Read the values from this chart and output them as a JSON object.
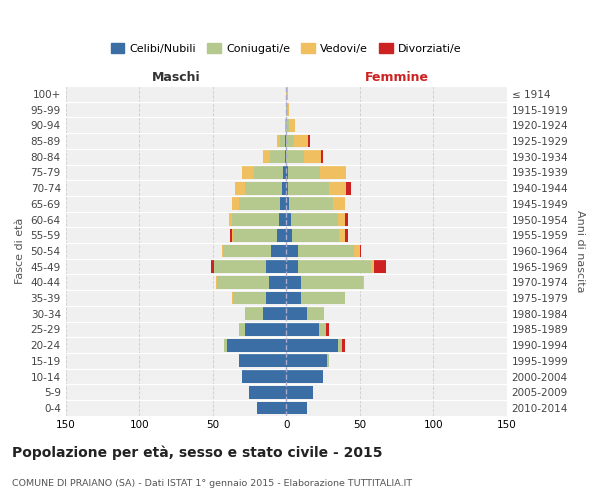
{
  "age_groups": [
    "0-4",
    "5-9",
    "10-14",
    "15-19",
    "20-24",
    "25-29",
    "30-34",
    "35-39",
    "40-44",
    "45-49",
    "50-54",
    "55-59",
    "60-64",
    "65-69",
    "70-74",
    "75-79",
    "80-84",
    "85-89",
    "90-94",
    "95-99",
    "100+"
  ],
  "birth_years": [
    "2010-2014",
    "2005-2009",
    "2000-2004",
    "1995-1999",
    "1990-1994",
    "1985-1989",
    "1980-1984",
    "1975-1979",
    "1970-1974",
    "1965-1969",
    "1960-1964",
    "1955-1959",
    "1950-1954",
    "1945-1949",
    "1940-1944",
    "1935-1939",
    "1930-1934",
    "1925-1929",
    "1920-1924",
    "1915-1919",
    "≤ 1914"
  ],
  "colors": {
    "celibi": "#3a6ea5",
    "coniugati": "#b5c98e",
    "vedovi": "#f0c060",
    "divorziati": "#cc2222"
  },
  "male": {
    "celibi": [
      20,
      25,
      30,
      32,
      40,
      28,
      16,
      14,
      12,
      14,
      10,
      6,
      5,
      4,
      3,
      2,
      1,
      1,
      0,
      0,
      0
    ],
    "coniugati": [
      0,
      0,
      0,
      0,
      2,
      4,
      12,
      22,
      35,
      35,
      33,
      30,
      32,
      28,
      25,
      20,
      10,
      3,
      1,
      0,
      0
    ],
    "vedovi": [
      0,
      0,
      0,
      0,
      0,
      0,
      0,
      1,
      1,
      0,
      1,
      1,
      2,
      5,
      7,
      8,
      5,
      2,
      0,
      0,
      0
    ],
    "divorziati": [
      0,
      0,
      0,
      0,
      0,
      0,
      0,
      0,
      0,
      2,
      0,
      1,
      0,
      0,
      0,
      0,
      0,
      0,
      0,
      0,
      0
    ]
  },
  "female": {
    "celibi": [
      14,
      18,
      25,
      28,
      35,
      22,
      14,
      10,
      10,
      8,
      8,
      4,
      3,
      2,
      1,
      1,
      0,
      0,
      0,
      0,
      0
    ],
    "coniugati": [
      0,
      0,
      0,
      1,
      3,
      5,
      12,
      30,
      42,
      50,
      38,
      32,
      32,
      30,
      28,
      22,
      12,
      5,
      2,
      1,
      0
    ],
    "vedovi": [
      0,
      0,
      0,
      0,
      0,
      0,
      0,
      0,
      1,
      2,
      4,
      4,
      5,
      8,
      12,
      18,
      12,
      10,
      4,
      1,
      1
    ],
    "divorziati": [
      0,
      0,
      0,
      0,
      2,
      2,
      0,
      0,
      0,
      8,
      1,
      2,
      2,
      0,
      3,
      0,
      1,
      1,
      0,
      0,
      0
    ]
  },
  "title": "Popolazione per età, sesso e stato civile - 2015",
  "subtitle": "COMUNE DI PRAIANO (SA) - Dati ISTAT 1° gennaio 2015 - Elaborazione TUTTITALIA.IT",
  "xlabel_left": "Maschi",
  "xlabel_right": "Femmine",
  "ylabel_left": "Fasce di età",
  "ylabel_right": "Anni di nascita",
  "xlim": 150,
  "bg_color": "#f0f0f0",
  "grid_color": "#cccccc",
  "legend_labels": [
    "Celibi/Nubili",
    "Coniugati/e",
    "Vedovi/e",
    "Divorziati/e"
  ]
}
